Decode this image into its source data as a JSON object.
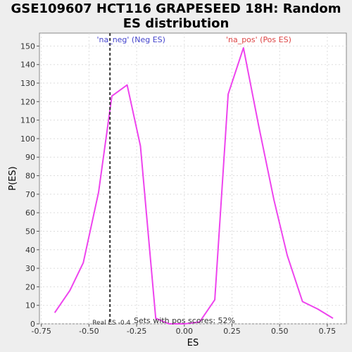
{
  "chart_data": {
    "type": "line",
    "title": "GSE109607 HCT116 GRAPESEED 18H: Random ES distribution",
    "xlabel": "ES",
    "ylabel": "P(ES)",
    "xlim": [
      -0.76,
      0.85
    ],
    "ylim": [
      0,
      157
    ],
    "x_ticks": [
      -0.75,
      -0.5,
      -0.25,
      0.0,
      0.25,
      0.5,
      0.75
    ],
    "x_tick_labels": [
      "-0.75",
      "-0.50",
      "-0.25",
      "0.00",
      "0.25",
      "0.50",
      "0.75"
    ],
    "y_ticks": [
      0,
      10,
      20,
      30,
      40,
      50,
      60,
      70,
      80,
      90,
      100,
      110,
      120,
      130,
      140,
      150
    ],
    "grid": true,
    "series": [
      {
        "color": "#ee44ee",
        "x": [
          -0.68,
          -0.6,
          -0.53,
          -0.45,
          -0.38,
          -0.3,
          -0.23,
          -0.15,
          -0.08,
          0.0,
          0.08,
          0.16,
          0.23,
          0.31,
          0.39,
          0.47,
          0.54,
          0.62,
          0.7,
          0.78
        ],
        "y": [
          6,
          18,
          33,
          71,
          123,
          129,
          96,
          3,
          0,
          0,
          1,
          13,
          124,
          149,
          107,
          67,
          37,
          12,
          8,
          3
        ]
      }
    ],
    "vline": {
      "x": -0.39,
      "color": "#333333",
      "style": "dashed"
    },
    "annotations": {
      "neg_label": {
        "text": "'na_neg' (Neg ES)",
        "color": "#4444cc"
      },
      "pos_label": {
        "text": "'na_pos' (Pos ES)",
        "color": "#dd4444"
      },
      "real_es": {
        "text": "Real ES -0.4"
      },
      "pos_scores": {
        "text": "Sets with pos scores: 52%"
      }
    }
  }
}
